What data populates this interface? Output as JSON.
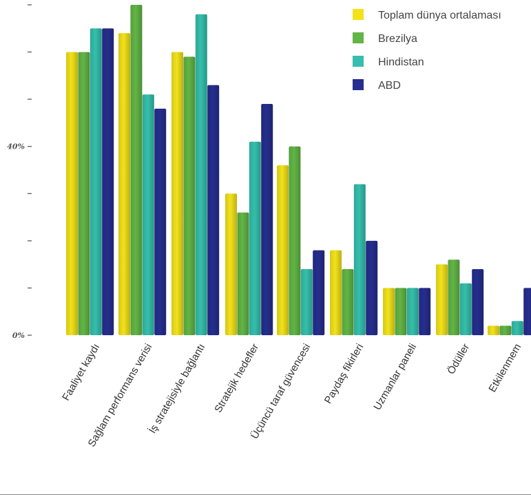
{
  "chart_data": {
    "type": "bar",
    "categories": [
      "Faaliyet kaydı",
      "Sağlam performans verisi",
      "İş stratejisiyle bağlantı",
      "Stratejik hedefler",
      "Üçüncü taraf güvencesi",
      "Paydaş fikirleri",
      "Uzmanlar paneli",
      "Ödüller",
      "Etkilenmem"
    ],
    "series": [
      {
        "name": "Toplam dünya ortalaması",
        "color": "#f2e21a",
        "values": [
          60,
          64,
          60,
          30,
          36,
          18,
          10,
          15,
          2
        ]
      },
      {
        "name": "Brezilya",
        "color": "#62b546",
        "values": [
          60,
          70,
          59,
          26,
          40,
          14,
          10,
          16,
          2
        ]
      },
      {
        "name": "Hindistan",
        "color": "#35bfac",
        "values": [
          65,
          51,
          68,
          41,
          14,
          32,
          10,
          11,
          3
        ]
      },
      {
        "name": "ABD",
        "color": "#262e8e",
        "values": [
          65,
          48,
          53,
          49,
          18,
          20,
          10,
          14,
          10
        ]
      }
    ],
    "ylim": [
      0,
      70
    ],
    "yticks": [
      0,
      10,
      20,
      30,
      40,
      50,
      60,
      70
    ],
    "ytick_labels": [
      "0%",
      "",
      "",
      "",
      "40%",
      "",
      "",
      ""
    ],
    "grid": false,
    "legend_position": "top-right",
    "title": "",
    "xlabel": "",
    "ylabel": ""
  }
}
